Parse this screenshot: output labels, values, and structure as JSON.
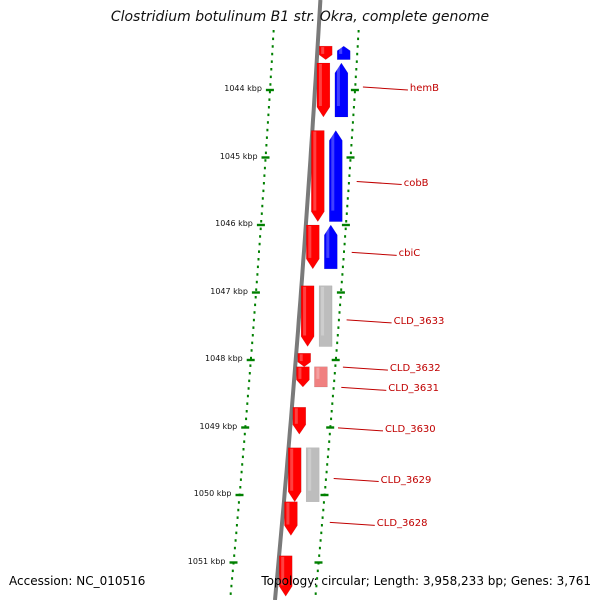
{
  "title": "Clostridium botulinum B1 str. Okra, complete genome",
  "accession": "Accession: NC_010516",
  "summary": "Topology: circular; Length: 3,958,233 bp; Genes: 3,761",
  "colors": {
    "forward_gene": "#ff0000",
    "reverse_gene": "#0000ff",
    "other_feature": "#bdbdbd",
    "pseudo_feature": "#f08080",
    "backbone": "#7a7a7a",
    "tick": "#008000",
    "label": "#c00000"
  },
  "ticks": [
    {
      "label": "1044 kbp",
      "pos": 1044
    },
    {
      "label": "1045 kbp",
      "pos": 1045
    },
    {
      "label": "1046 kbp",
      "pos": 1046
    },
    {
      "label": "1047 kbp",
      "pos": 1047
    },
    {
      "label": "1048 kbp",
      "pos": 1048
    },
    {
      "label": "1049 kbp",
      "pos": 1049
    },
    {
      "label": "1050 kbp",
      "pos": 1050
    },
    {
      "label": "1051 kbp",
      "pos": 1051
    }
  ],
  "genes": [
    {
      "name": "",
      "start": 1043.35,
      "end": 1043.55,
      "strand": "+"
    },
    {
      "name": "",
      "start": 1043.35,
      "end": 1043.55,
      "strand": "-"
    },
    {
      "name": "hemB",
      "start": 1043.6,
      "end": 1044.4,
      "strand": "+"
    },
    {
      "name": "hemB",
      "start": 1043.6,
      "end": 1044.4,
      "strand": "-"
    },
    {
      "name": "cobB",
      "start": 1044.6,
      "end": 1045.95,
      "strand": "+"
    },
    {
      "name": "cobB",
      "start": 1044.6,
      "end": 1045.95,
      "strand": "-"
    },
    {
      "name": "cbiC",
      "start": 1046.0,
      "end": 1046.65,
      "strand": "+"
    },
    {
      "name": "cbiC",
      "start": 1046.0,
      "end": 1046.65,
      "strand": "-"
    },
    {
      "name": "CLD_3633",
      "start": 1046.9,
      "end": 1047.8,
      "strand": "+"
    },
    {
      "name": "CLD_3633",
      "start": 1046.9,
      "end": 1047.8,
      "strand": "other"
    },
    {
      "name": "CLD_3632",
      "start": 1047.9,
      "end": 1048.1,
      "strand": "+"
    },
    {
      "name": "CLD_3631",
      "start": 1048.1,
      "end": 1048.4,
      "strand": "+"
    },
    {
      "name": "CLD_3631",
      "start": 1048.1,
      "end": 1048.4,
      "strand": "pseudo"
    },
    {
      "name": "CLD_3630",
      "start": 1048.7,
      "end": 1049.1,
      "strand": "+"
    },
    {
      "name": "CLD_3629",
      "start": 1049.3,
      "end": 1050.1,
      "strand": "+"
    },
    {
      "name": "CLD_3629",
      "start": 1049.3,
      "end": 1050.1,
      "strand": "other"
    },
    {
      "name": "CLD_3628",
      "start": 1050.1,
      "end": 1050.6,
      "strand": "+"
    },
    {
      "name": "",
      "start": 1050.9,
      "end": 1051.5,
      "strand": "+"
    }
  ],
  "labels": [
    {
      "text": "hemB",
      "pos": 1044.0
    },
    {
      "text": "cobB",
      "pos": 1045.4
    },
    {
      "text": "cbiC",
      "pos": 1046.45
    },
    {
      "text": "CLD_3633",
      "pos": 1047.45
    },
    {
      "text": "CLD_3632",
      "pos": 1048.15
    },
    {
      "text": "CLD_3631",
      "pos": 1048.45
    },
    {
      "text": "CLD_3630",
      "pos": 1049.05
    },
    {
      "text": "CLD_3629",
      "pos": 1049.8
    },
    {
      "text": "CLD_3628",
      "pos": 1050.45
    }
  ]
}
